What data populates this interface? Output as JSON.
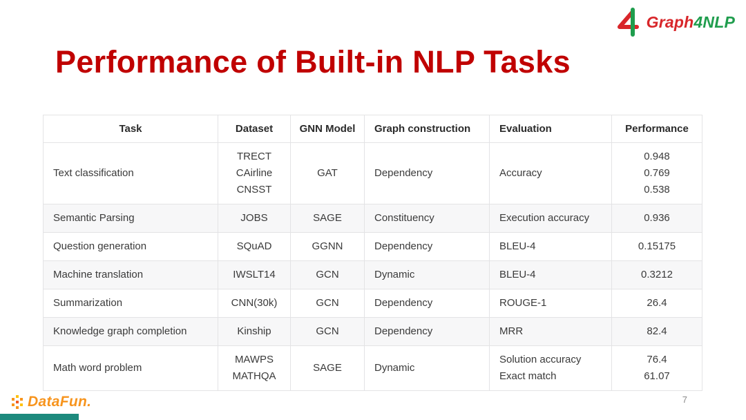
{
  "slide": {
    "title": "Performance of Built-in NLP Tasks",
    "page_number": "7"
  },
  "branding": {
    "graph4nlp": {
      "parts": [
        {
          "text": "Graph",
          "color": "#d8262a"
        },
        {
          "text": "4",
          "color": "#1f9d4d"
        },
        {
          "text": "NLP",
          "color": "#1f9d4d"
        }
      ]
    },
    "datafun": {
      "text": "DataFun."
    }
  },
  "colors": {
    "title_red": "#c00000",
    "logo_red": "#d8262a",
    "logo_green": "#1f9d4d",
    "datafun_orange": "#f7941d",
    "accent_teal": "#1d8a7d",
    "row_alt": "#f7f7f8",
    "table_border": "#e3e3e5"
  },
  "table": {
    "headers": [
      "Task",
      "Dataset",
      "GNN Model",
      "Graph construction",
      "Evaluation",
      "Performance"
    ],
    "rows": [
      {
        "task": "Text classification",
        "dataset": [
          "TRECT",
          "CAirline",
          "CNSST"
        ],
        "gnn_model": "GAT",
        "graph_construction": "Dependency",
        "evaluation": "Accuracy",
        "performance": [
          "0.948",
          "0.769",
          "0.538"
        ]
      },
      {
        "task": "Semantic Parsing",
        "dataset": "JOBS",
        "gnn_model": "SAGE",
        "graph_construction": "Constituency",
        "evaluation": "Execution accuracy",
        "performance": "0.936"
      },
      {
        "task": "Question generation",
        "dataset": "SQuAD",
        "gnn_model": "GGNN",
        "graph_construction": "Dependency",
        "evaluation": "BLEU-4",
        "performance": "0.15175"
      },
      {
        "task": "Machine translation",
        "dataset": "IWSLT14",
        "gnn_model": "GCN",
        "graph_construction": "Dynamic",
        "evaluation": "BLEU-4",
        "performance": "0.3212"
      },
      {
        "task": "Summarization",
        "dataset": "CNN(30k)",
        "gnn_model": "GCN",
        "graph_construction": "Dependency",
        "evaluation": "ROUGE-1",
        "performance": "26.4"
      },
      {
        "task": "Knowledge graph completion",
        "dataset": "Kinship",
        "gnn_model": "GCN",
        "graph_construction": "Dependency",
        "evaluation": "MRR",
        "performance": "82.4"
      },
      {
        "task": "Math word problem",
        "dataset": [
          "MAWPS",
          "MATHQA"
        ],
        "gnn_model": "SAGE",
        "graph_construction": "Dynamic",
        "evaluation": [
          "Solution accuracy",
          "Exact match"
        ],
        "performance": [
          "76.4",
          "61.07"
        ]
      }
    ]
  }
}
